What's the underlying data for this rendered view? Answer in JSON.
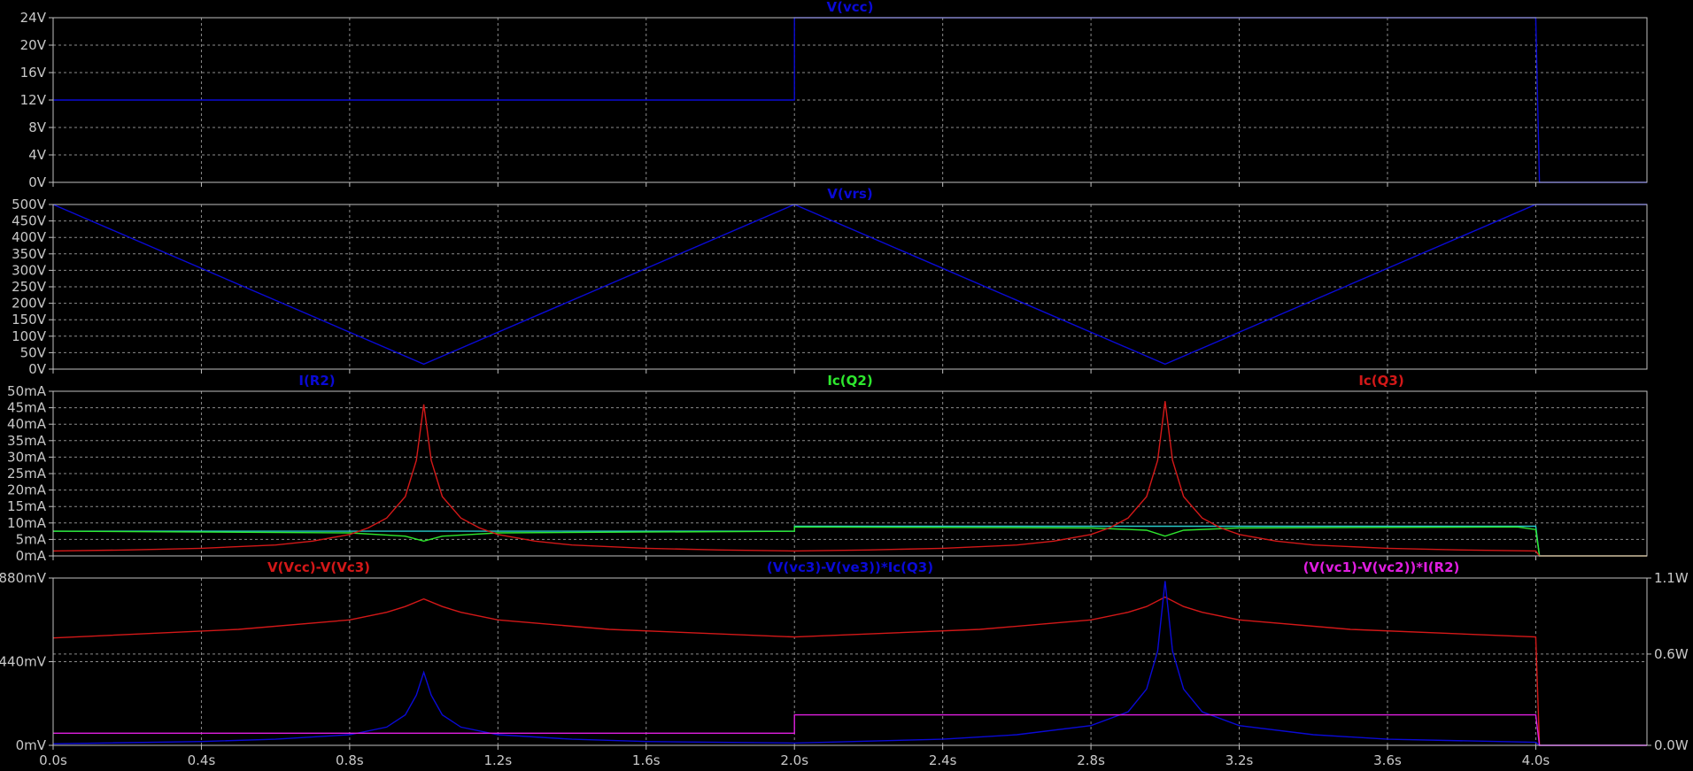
{
  "colors": {
    "background": "#000000",
    "frame": "#c0c0c0",
    "grid": "#8c8c8c",
    "blue": "#0a0ad6",
    "green": "#2ee82e",
    "cyan": "#27c9c9",
    "red": "#d31818",
    "magenta": "#e01ee0"
  },
  "chart_data": [
    {
      "type": "line",
      "series": [
        {
          "name": "V(vcc)",
          "color": "#0a0ad6",
          "x": [
            0,
            2.0,
            2.0,
            4.0,
            4.01,
            4.3
          ],
          "y": [
            12,
            12,
            24,
            24,
            0,
            0
          ]
        }
      ],
      "xlim": [
        0,
        4.3
      ],
      "ylim": [
        0,
        24
      ],
      "ytick_values": [
        0,
        4,
        8,
        12,
        16,
        20,
        24
      ],
      "ytick_labels": [
        "0V",
        "4V",
        "8V",
        "12V",
        "16V",
        "20V",
        "24V"
      ],
      "grid": true
    },
    {
      "type": "line",
      "series": [
        {
          "name": "V(vrs)",
          "color": "#0a0ad6",
          "x": [
            0,
            1.0,
            2.0,
            3.0,
            4.0,
            4.3
          ],
          "y": [
            500,
            15,
            500,
            15,
            500,
            500
          ]
        }
      ],
      "xlim": [
        0,
        4.3
      ],
      "ylim": [
        0,
        500
      ],
      "ytick_values": [
        0,
        50,
        100,
        150,
        200,
        250,
        300,
        350,
        400,
        450,
        500
      ],
      "ytick_labels": [
        "0V",
        "50V",
        "100V",
        "150V",
        "200V",
        "250V",
        "300V",
        "350V",
        "400V",
        "450V",
        "500V"
      ],
      "grid": true
    },
    {
      "type": "line",
      "series": [
        {
          "name": "I(R2)",
          "color": "#27c9c9",
          "x": [
            0,
            2.0,
            2.0,
            4.0,
            4.01,
            4.3
          ],
          "y": [
            7.5,
            7.5,
            9.0,
            9.0,
            0,
            0
          ]
        },
        {
          "name": "Ic(Q2)",
          "color": "#2ee82e",
          "x": [
            0,
            0.8,
            0.95,
            1.0,
            1.05,
            1.2,
            2.0,
            2.0,
            2.8,
            2.95,
            3.0,
            3.05,
            3.2,
            3.95,
            4.0,
            4.01,
            4.3
          ],
          "y": [
            7.5,
            7.0,
            6.0,
            4.5,
            6.0,
            7.0,
            7.5,
            8.8,
            8.5,
            7.8,
            6.0,
            7.8,
            8.5,
            8.8,
            8.0,
            0,
            0
          ]
        },
        {
          "name": "Ic(Q3)",
          "color": "#d31818",
          "x": [
            0,
            0.2,
            0.4,
            0.6,
            0.7,
            0.8,
            0.85,
            0.9,
            0.95,
            0.98,
            1.0,
            1.02,
            1.05,
            1.1,
            1.15,
            1.2,
            1.3,
            1.4,
            1.6,
            1.8,
            2.0,
            2.2,
            2.4,
            2.6,
            2.7,
            2.8,
            2.85,
            2.9,
            2.95,
            2.98,
            3.0,
            3.02,
            3.05,
            3.1,
            3.15,
            3.2,
            3.3,
            3.4,
            3.6,
            3.8,
            4.0,
            4.01,
            4.3
          ],
          "y": [
            1.5,
            1.8,
            2.3,
            3.3,
            4.5,
            6.5,
            8.5,
            11.5,
            18,
            29,
            46,
            29,
            18,
            11.5,
            8.5,
            6.5,
            4.5,
            3.3,
            2.3,
            1.8,
            1.5,
            1.8,
            2.3,
            3.3,
            4.5,
            6.5,
            8.5,
            11.5,
            18,
            29,
            47,
            29,
            18,
            11.5,
            8.5,
            6.5,
            4.5,
            3.3,
            2.3,
            1.8,
            1.5,
            0,
            0
          ]
        }
      ],
      "xlim": [
        0,
        4.3
      ],
      "ylim": [
        0,
        50
      ],
      "ytick_values": [
        0,
        5,
        10,
        15,
        20,
        25,
        30,
        35,
        40,
        45,
        50
      ],
      "ytick_labels": [
        "0mA",
        "5mA",
        "10mA",
        "15mA",
        "20mA",
        "25mA",
        "30mA",
        "35mA",
        "40mA",
        "45mA",
        "50mA"
      ],
      "grid": true
    },
    {
      "type": "line",
      "series": [
        {
          "name": "V(Vcc)-V(Vc3)",
          "color": "#d31818",
          "axis": "left",
          "x": [
            0,
            0.5,
            0.8,
            0.9,
            0.95,
            1.0,
            1.05,
            1.1,
            1.2,
            1.5,
            2.0,
            2.5,
            2.8,
            2.9,
            2.95,
            3.0,
            3.05,
            3.1,
            3.2,
            3.5,
            4.0,
            4.01,
            4.3
          ],
          "y": [
            565,
            610,
            660,
            700,
            730,
            770,
            730,
            700,
            660,
            610,
            570,
            610,
            660,
            700,
            730,
            780,
            730,
            700,
            660,
            610,
            570,
            0,
            0
          ]
        },
        {
          "name": "(V(vc3)-V(ve3))*Ic(Q3)",
          "color": "#0a0ad6",
          "axis": "right",
          "x": [
            0,
            0.4,
            0.6,
            0.8,
            0.9,
            0.95,
            0.98,
            1.0,
            1.02,
            1.05,
            1.1,
            1.2,
            1.4,
            1.6,
            2.0,
            2.4,
            2.6,
            2.8,
            2.9,
            2.95,
            2.98,
            3.0,
            3.02,
            3.05,
            3.1,
            3.2,
            3.4,
            3.6,
            4.0,
            4.01,
            4.3
          ],
          "y": [
            0.01,
            0.025,
            0.04,
            0.07,
            0.12,
            0.2,
            0.33,
            0.48,
            0.33,
            0.2,
            0.12,
            0.07,
            0.04,
            0.025,
            0.015,
            0.04,
            0.07,
            0.13,
            0.22,
            0.37,
            0.62,
            1.08,
            0.62,
            0.37,
            0.22,
            0.13,
            0.07,
            0.04,
            0.02,
            0,
            0
          ]
        },
        {
          "name": "(V(vc1)-V(vc2))*I(R2)",
          "color": "#e01ee0",
          "axis": "right",
          "x": [
            0,
            2.0,
            2.0,
            4.0,
            4.01,
            4.3
          ],
          "y": [
            0.08,
            0.08,
            0.2,
            0.2,
            0,
            0
          ]
        }
      ],
      "xlim": [
        0,
        4.3
      ],
      "ylim": [
        0,
        880
      ],
      "ytick_values": [
        0,
        440,
        880
      ],
      "ytick_labels": [
        "0mV",
        "440mV",
        "880mV"
      ],
      "y2lim": [
        0,
        1.1
      ],
      "y2tick_values": [
        0,
        0.6,
        1.1
      ],
      "y2tick_labels": [
        "0.0W",
        "0.6W",
        "1.1W"
      ],
      "xtick_values": [
        0,
        0.4,
        0.8,
        1.2,
        1.6,
        2.0,
        2.4,
        2.8,
        3.2,
        3.6,
        4.0
      ],
      "xtick_labels": [
        "0.0s",
        "0.4s",
        "0.8s",
        "1.2s",
        "1.6s",
        "2.0s",
        "2.4s",
        "2.8s",
        "3.2s",
        "3.6s",
        "4.0s"
      ],
      "grid": true
    }
  ],
  "trace_labels": [
    {
      "text": "V(vcc)",
      "color": "#0a0ad6"
    },
    {
      "text": "V(vrs)",
      "color": "#0a0ad6"
    },
    {
      "text": "I(R2)",
      "color": "#0a0ad6"
    },
    {
      "text": "Ic(Q2)",
      "color": "#2ee82e"
    },
    {
      "text": "Ic(Q3)",
      "color": "#d31818"
    },
    {
      "text": "V(Vcc)-V(Vc3)",
      "color": "#d31818"
    },
    {
      "text": "(V(vc3)-V(ve3))*Ic(Q3)",
      "color": "#0a0ad6"
    },
    {
      "text": "(V(vc1)-V(vc2))*I(R2)",
      "color": "#e01ee0"
    }
  ]
}
